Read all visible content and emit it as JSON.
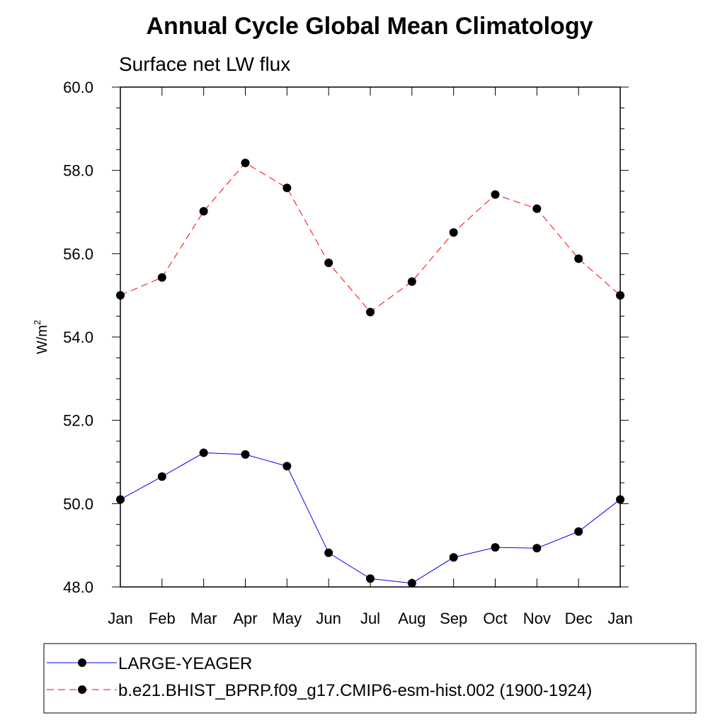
{
  "chart_data": {
    "type": "line",
    "title": "Annual Cycle Global Mean Climatology",
    "subtitle": "Surface net LW flux",
    "ylabel": "W/m",
    "ylabel_sup": "2",
    "categories": [
      "Jan",
      "Feb",
      "Mar",
      "Apr",
      "May",
      "Jun",
      "Jul",
      "Aug",
      "Sep",
      "Oct",
      "Nov",
      "Dec",
      "Jan"
    ],
    "ylim": [
      48.0,
      60.0
    ],
    "yticks": [
      "48.0",
      "50.0",
      "52.0",
      "54.0",
      "56.0",
      "58.0",
      "60.0"
    ],
    "grid": false,
    "legend_position": "bottom",
    "series": [
      {
        "name": "LARGE-YEAGER",
        "color": "#0000ff",
        "line_style": "solid",
        "marker": "filled-circle",
        "values": [
          50.1,
          50.65,
          51.22,
          51.18,
          50.9,
          48.82,
          48.2,
          48.09,
          48.71,
          48.95,
          48.93,
          49.33,
          50.1
        ]
      },
      {
        "name": "b.e21.BHIST_BPRP.f09_g17.CMIP6-esm-hist.002 (1900-1924)",
        "color": "#ff0000",
        "line_style": "dashed",
        "marker": "filled-circle",
        "values": [
          55.0,
          55.43,
          57.02,
          58.18,
          57.58,
          55.78,
          54.6,
          55.33,
          56.51,
          57.42,
          57.08,
          55.88,
          55.0
        ]
      }
    ]
  }
}
